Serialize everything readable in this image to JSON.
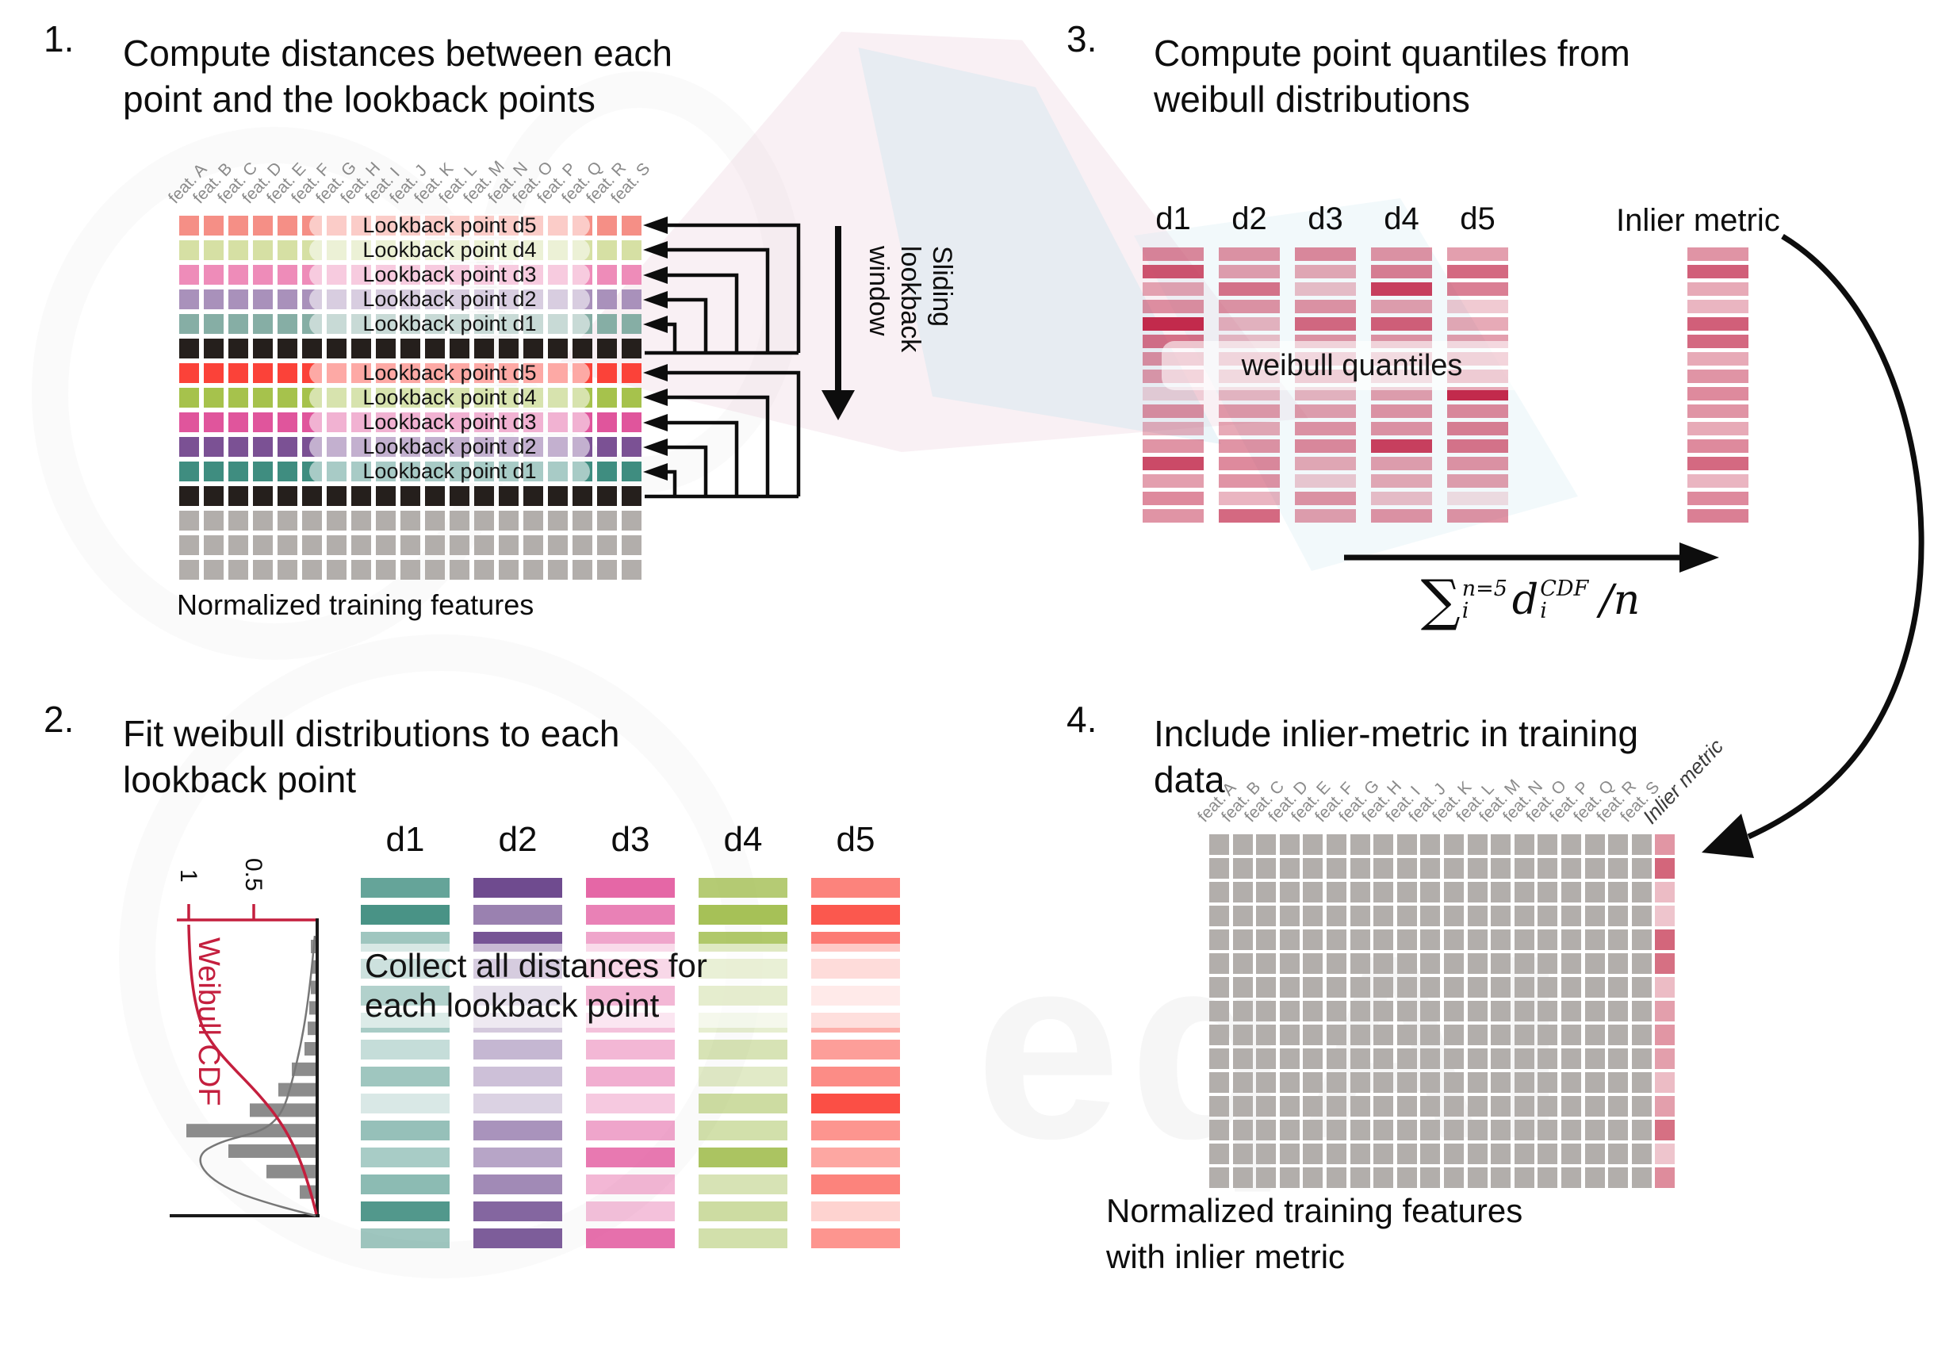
{
  "canvas": {
    "bg": "#ffffff"
  },
  "colors": {
    "black_row": "#251f1c",
    "gray_row": "#b2aeab",
    "accent_red": "#c41f3e",
    "quantile_base": "#c22a4c",
    "inlier_pink_base": "#c8405a",
    "hist_bar": "#8c8c8c"
  },
  "s1": {
    "num": "1.",
    "title_lines": [
      "Compute distances between each",
      "point and the lookback points"
    ],
    "caption": "Normalized training features",
    "sliding_lines": [
      "Sliding",
      "lookback",
      "window"
    ],
    "feature_labels": [
      "feat. A",
      "feat. B",
      "feat. C",
      "feat. D",
      "feat. E",
      "feat. F",
      "feat. G",
      "feat. H",
      "feat. I",
      "feat. J",
      "feat. K",
      "feat. L",
      "feat. M",
      "feat. N",
      "feat. O",
      "feat. P",
      "feat. Q",
      "feat. R",
      "feat. S"
    ],
    "rows": [
      {
        "color": "#f58f86",
        "label": "Lookback point d5"
      },
      {
        "color": "#d6e0a4",
        "label": "Lookback point d4"
      },
      {
        "color": "#ee8cb9",
        "label": "Lookback point d3"
      },
      {
        "color": "#a991bb",
        "label": "Lookback point d2"
      },
      {
        "color": "#86aea5",
        "label": "Lookback point d1"
      },
      {
        "color": "#251f1c",
        "label": ""
      },
      {
        "color": "#fb4239",
        "label": "Lookback point d5"
      },
      {
        "color": "#a6c24c",
        "label": "Lookback point d4"
      },
      {
        "color": "#e0559c",
        "label": "Lookback point d3"
      },
      {
        "color": "#7b5194",
        "label": "Lookback point d2"
      },
      {
        "color": "#3f8d80",
        "label": "Lookback point d1"
      },
      {
        "color": "#251f1c",
        "label": ""
      },
      {
        "color": "#b2aeab",
        "label": ""
      },
      {
        "color": "#b2aeab",
        "label": ""
      },
      {
        "color": "#b2aeab",
        "label": ""
      }
    ]
  },
  "s2": {
    "num": "2.",
    "title_lines": [
      "Fit weibull distributions to each",
      "lookback point"
    ],
    "collect_lines": [
      "Collect all distances for",
      "each lookback point"
    ],
    "plot": {
      "ylabel": "Weibull CDF",
      "tick_labels": [
        "1",
        "0.5"
      ],
      "type": "histogram-rotated",
      "bar_lengths": [
        6,
        5,
        6,
        8,
        10,
        14,
        30,
        47,
        83,
        163,
        110,
        62,
        20
      ]
    },
    "columns": [
      {
        "label": "d1",
        "color": "#3f8d80",
        "alphas": [
          0.8,
          0.95,
          0.5,
          0.65,
          1.0,
          0.45,
          0.3,
          0.5,
          0.2,
          0.55,
          0.45,
          0.6,
          0.9,
          0.5
        ]
      },
      {
        "label": "d2",
        "color": "#6f4b8f",
        "alphas": [
          1.0,
          0.7,
          0.95,
          0.7,
          0.45,
          0.3,
          0.4,
          0.35,
          0.25,
          0.6,
          0.5,
          0.65,
          0.85,
          0.9
        ]
      },
      {
        "label": "d3",
        "color": "#e04c97",
        "alphas": [
          0.85,
          0.7,
          0.5,
          0.55,
          1.0,
          0.35,
          0.4,
          0.45,
          0.3,
          0.5,
          0.75,
          0.4,
          0.35,
          0.8
        ]
      },
      {
        "label": "d4",
        "color": "#9cba45",
        "alphas": [
          0.75,
          0.9,
          0.8,
          0.55,
          0.65,
          0.25,
          0.4,
          0.3,
          0.5,
          0.45,
          0.85,
          0.4,
          0.5,
          0.45
        ]
      },
      {
        "label": "d5",
        "color": "#fb4f45",
        "alphas": [
          0.7,
          0.95,
          0.75,
          0.5,
          0.3,
          0.45,
          0.55,
          0.65,
          1.0,
          0.6,
          0.5,
          0.7,
          0.25,
          0.6
        ]
      }
    ]
  },
  "s3": {
    "num": "3.",
    "title_lines": [
      "Compute point quantiles from",
      "weibull distributions"
    ],
    "quantiles_label": "weibull quantiles",
    "inlier_label": "Inlier metric",
    "formula": {
      "sigma": "∑",
      "upper": "n=5",
      "lower": "i",
      "var": "d",
      "var_upper": "CDF",
      "var_lower": "i",
      "tail": "/n"
    },
    "columns": [
      {
        "label": "d1",
        "alphas": [
          0.55,
          0.8,
          0.4,
          0.5,
          1.0,
          0.65,
          0.5,
          0.45,
          0.18,
          0.5,
          0.35,
          0.5,
          0.85,
          0.45,
          0.55,
          0.5
        ]
      },
      {
        "label": "d2",
        "alphas": [
          0.5,
          0.45,
          0.65,
          0.5,
          0.35,
          0.3,
          0.45,
          0.4,
          0.3,
          0.45,
          0.4,
          0.5,
          0.55,
          0.5,
          0.35,
          0.7
        ]
      },
      {
        "label": "d3",
        "alphas": [
          0.55,
          0.4,
          0.3,
          0.5,
          0.7,
          0.5,
          0.45,
          0.55,
          0.35,
          0.45,
          0.5,
          0.55,
          0.4,
          0.25,
          0.5,
          0.45
        ]
      },
      {
        "label": "d4",
        "alphas": [
          0.5,
          0.6,
          0.9,
          0.45,
          0.75,
          0.5,
          0.4,
          0.35,
          0.45,
          0.5,
          0.5,
          0.9,
          0.45,
          0.4,
          0.3,
          0.5
        ]
      },
      {
        "label": "d5",
        "alphas": [
          0.45,
          0.7,
          0.6,
          0.25,
          0.4,
          0.45,
          0.5,
          0.6,
          1.0,
          0.55,
          0.6,
          0.65,
          0.5,
          0.45,
          0.15,
          0.5
        ]
      }
    ],
    "inlier_alphas": [
      0.5,
      0.75,
      0.4,
      0.35,
      0.75,
      0.7,
      0.4,
      0.5,
      0.55,
      0.5,
      0.4,
      0.55,
      0.7,
      0.35,
      0.55,
      0.6
    ]
  },
  "s4": {
    "num": "4.",
    "title_lines": [
      "Include inlier-metric in training",
      "data"
    ],
    "caption_lines": [
      "Normalized training features",
      "with inlier metric"
    ],
    "inlier_col_label": "Inlier metric",
    "feature_labels": [
      "feat. A",
      "feat. B",
      "feat. C",
      "feat. D",
      "feat. E",
      "feat. F",
      "feat. G",
      "feat. H",
      "feat. I",
      "feat. J",
      "feat. K",
      "feat. L",
      "feat. M",
      "feat. N",
      "feat. O",
      "feat. P",
      "feat. Q",
      "feat. R",
      "feat. S"
    ],
    "inlier_alphas": [
      0.55,
      0.8,
      0.35,
      0.3,
      0.8,
      0.75,
      0.35,
      0.5,
      0.55,
      0.5,
      0.35,
      0.5,
      0.75,
      0.3,
      0.6
    ]
  },
  "watermark_text": "eqAI"
}
